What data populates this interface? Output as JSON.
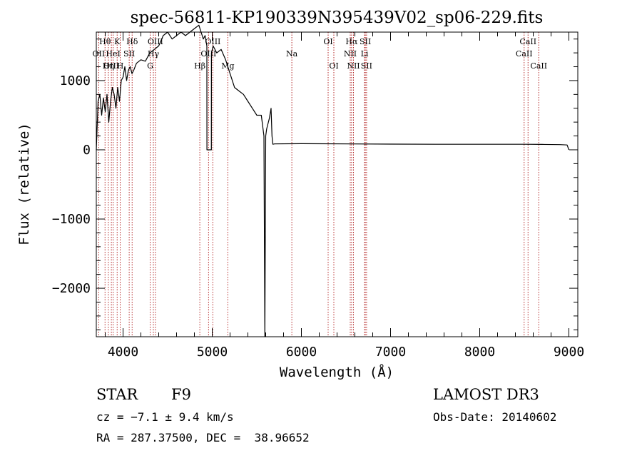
{
  "chart_data": {
    "type": "line",
    "title": "spec-56811-KP190339N395439V02_sp06-229.fits",
    "xlabel": "Wavelength (Å)",
    "ylabel": "Flux (relative)",
    "xlim": [
      3700,
      9100
    ],
    "ylim": [
      -2700,
      1700
    ],
    "x_ticks": [
      4000,
      5000,
      6000,
      7000,
      8000,
      9000
    ],
    "y_ticks": [
      -2000,
      -1000,
      0,
      1000
    ],
    "x_tick_labels": [
      "4000",
      "5000",
      "6000",
      "7000",
      "8000",
      "9000"
    ],
    "y_tick_labels": [
      "−2000",
      "−1000",
      "0",
      "1000"
    ],
    "grid": false,
    "series": [
      {
        "name": "flux",
        "color": "#000000",
        "x": [
          3700,
          3720,
          3740,
          3760,
          3780,
          3800,
          3820,
          3840,
          3860,
          3880,
          3900,
          3920,
          3940,
          3960,
          3980,
          4000,
          4020,
          4040,
          4060,
          4080,
          4100,
          4120,
          4150,
          4200,
          4250,
          4300,
          4350,
          4400,
          4450,
          4500,
          4550,
          4600,
          4650,
          4700,
          4750,
          4800,
          4850,
          4900,
          4920,
          4940,
          4941,
          4990,
          4991,
          5010,
          5050,
          5100,
          5150,
          5200,
          5250,
          5300,
          5350,
          5400,
          5450,
          5500,
          5550,
          5580,
          5590,
          5600,
          5610,
          5620,
          5640,
          5660,
          5670,
          5680,
          5700,
          6000,
          6500,
          7000,
          7500,
          8000,
          8500,
          8700,
          8900,
          8980,
          9000
        ],
        "y": [
          0,
          700,
          800,
          500,
          750,
          550,
          800,
          400,
          700,
          900,
          800,
          600,
          900,
          700,
          1000,
          1050,
          1200,
          1000,
          1150,
          1200,
          1100,
          1150,
          1250,
          1300,
          1280,
          1400,
          1450,
          1500,
          1650,
          1700,
          1600,
          1650,
          1700,
          1650,
          1700,
          1750,
          1800,
          1600,
          1650,
          1500,
          0,
          0,
          1400,
          1500,
          1400,
          1450,
          1300,
          1100,
          900,
          850,
          800,
          700,
          600,
          500,
          500,
          200,
          -2700,
          200,
          300,
          350,
          450,
          600,
          200,
          80,
          85,
          88,
          85,
          82,
          80,
          80,
          80,
          78,
          75,
          70,
          0
        ]
      }
    ],
    "annotations": [
      {
        "label": "Hθ",
        "x": 3798,
        "row": 1
      },
      {
        "label": "OII",
        "x": 3727,
        "row": 2
      },
      {
        "label": "OIII",
        "x": 3869,
        "row": 3
      },
      {
        "label": "Hη",
        "x": 3835,
        "row": 3
      },
      {
        "label": "K",
        "x": 3934,
        "row": 1
      },
      {
        "label": "HeI",
        "x": 3889,
        "row": 2
      },
      {
        "label": "SII",
        "x": 4069,
        "row": 2
      },
      {
        "label": "H",
        "x": 3968,
        "row": 3
      },
      {
        "label": "Hδ",
        "x": 4102,
        "row": 1
      },
      {
        "label": "OIII",
        "x": 4363,
        "row": 1
      },
      {
        "label": "Hγ",
        "x": 4340,
        "row": 2
      },
      {
        "label": "G",
        "x": 4304,
        "row": 3
      },
      {
        "label": "OIII",
        "x": 5007,
        "row": 1
      },
      {
        "label": "OIII",
        "x": 4959,
        "row": 2
      },
      {
        "label": "Hβ",
        "x": 4861,
        "row": 3
      },
      {
        "label": "Mg",
        "x": 5175,
        "row": 3
      },
      {
        "label": "Na",
        "x": 5893,
        "row": 2
      },
      {
        "label": "OI",
        "x": 6300,
        "row": 1
      },
      {
        "label": "OI",
        "x": 6364,
        "row": 3
      },
      {
        "label": "Hα",
        "x": 6563,
        "row": 1
      },
      {
        "label": "SII",
        "x": 6717,
        "row": 1
      },
      {
        "label": "NII",
        "x": 6548,
        "row": 2
      },
      {
        "label": "Li",
        "x": 6708,
        "row": 2
      },
      {
        "label": "NII",
        "x": 6584,
        "row": 3
      },
      {
        "label": "SII",
        "x": 6731,
        "row": 3
      },
      {
        "label": "CaII",
        "x": 8542,
        "row": 1
      },
      {
        "label": "CaII",
        "x": 8498,
        "row": 2
      },
      {
        "label": "CaII",
        "x": 8662,
        "row": 3
      }
    ]
  },
  "info": {
    "object_class": "STAR",
    "subclass": "F9",
    "survey": "LAMOST DR3",
    "redshift": "cz = −7.1 ± 9.4 km/s",
    "obs_date": "Obs-Date: 20140602",
    "coords": "RA = 287.37500, DEC =  38.96652"
  },
  "colors": {
    "line": "#000000",
    "marker": "#b22222",
    "axis": "#000000"
  }
}
